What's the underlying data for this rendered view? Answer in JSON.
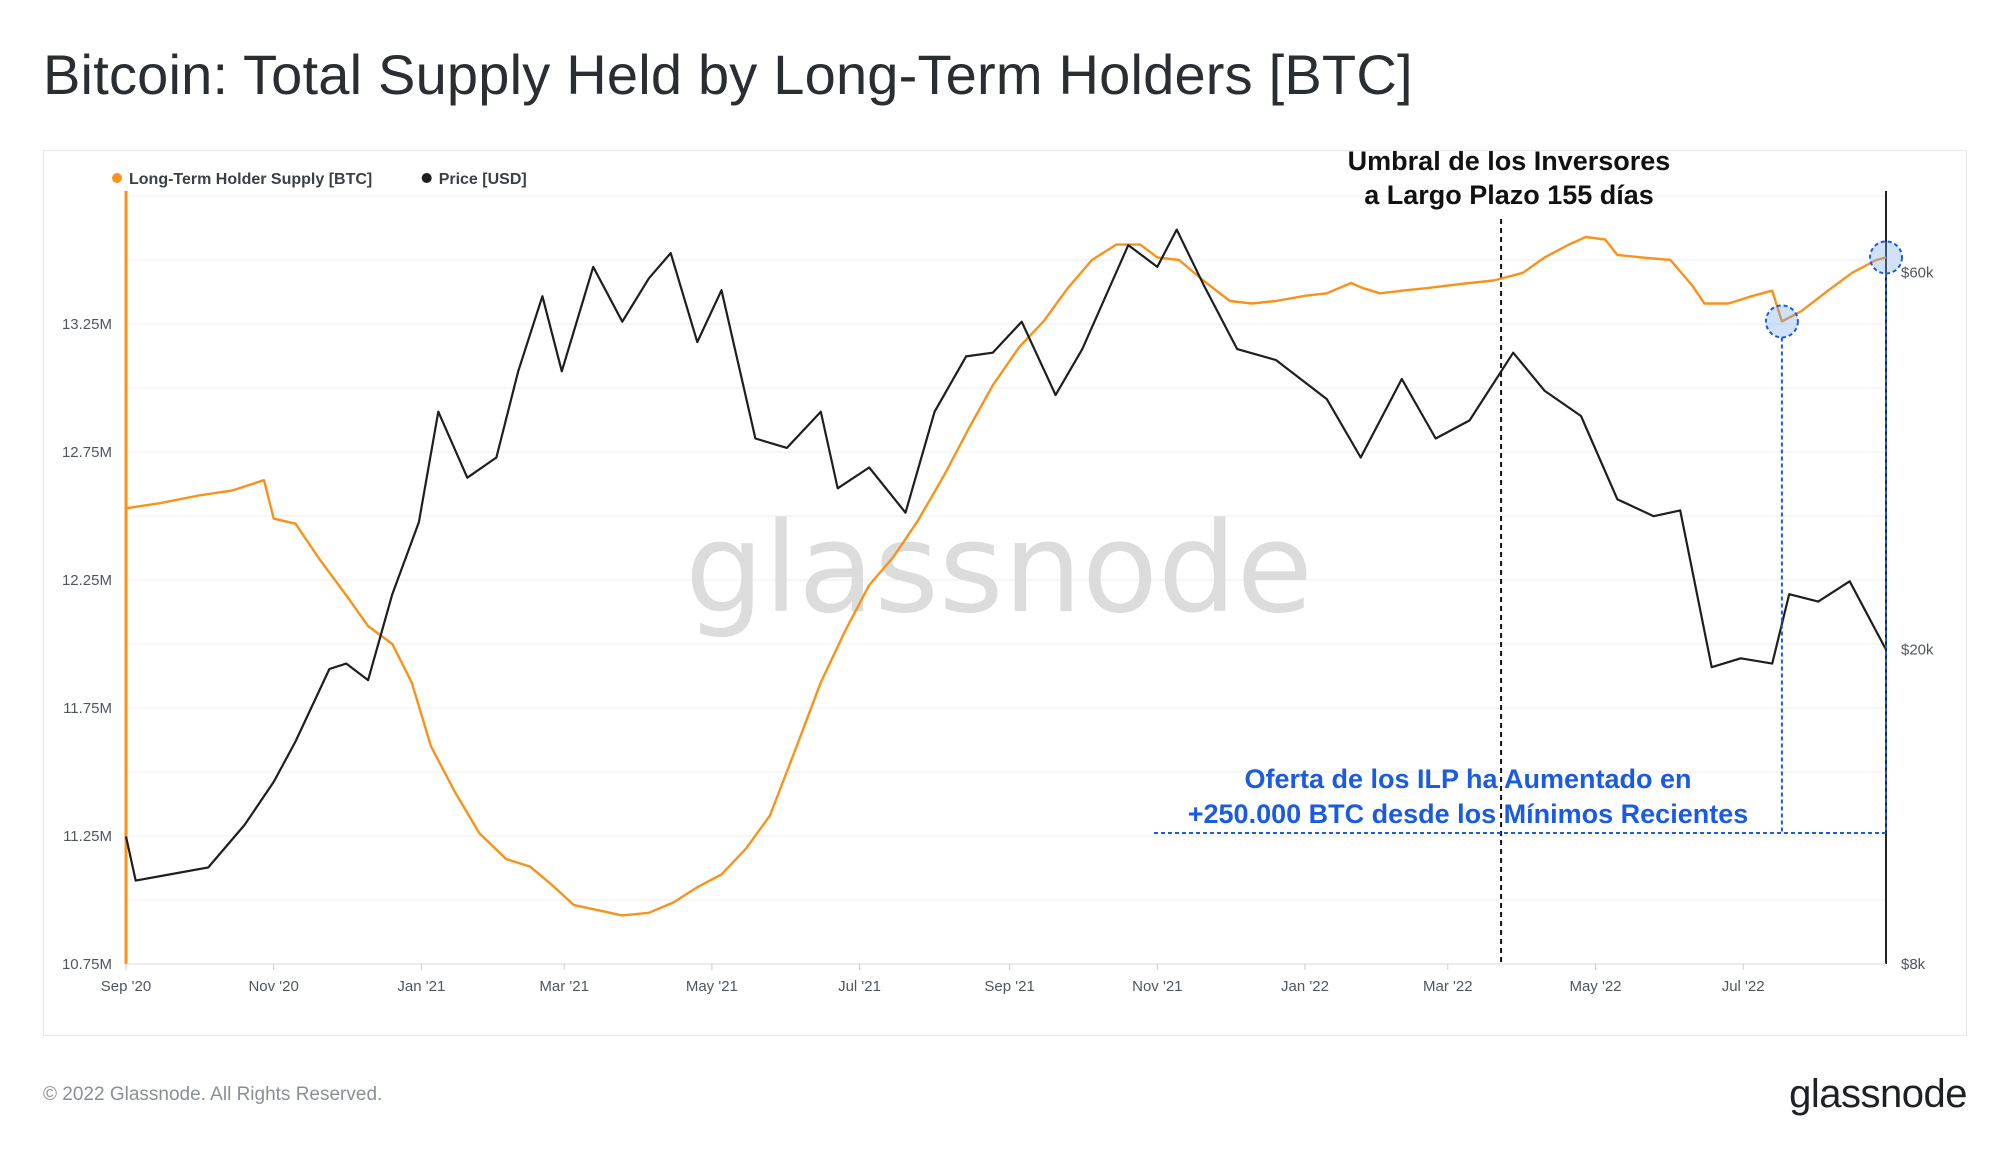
{
  "page": {
    "title": "Bitcoin: Total Supply Held by Long-Term Holders [BTC]",
    "copyright": "© 2022 Glassnode. All Rights Reserved.",
    "brand": "glassnode",
    "watermark": "glassnode"
  },
  "chart_data": {
    "type": "line",
    "title": "Bitcoin: Total Supply Held by Long-Term Holders [BTC]",
    "x_ticks": [
      "Sep '20",
      "Nov '20",
      "Jan '21",
      "Mar '21",
      "May '21",
      "Jul '21",
      "Sep '21",
      "Nov '21",
      "Jan '22",
      "Mar '22",
      "May '22",
      "Jul '22"
    ],
    "x_tick_dates": [
      "2020-09-01",
      "2020-11-01",
      "2021-01-01",
      "2021-03-01",
      "2021-05-01",
      "2021-07-01",
      "2021-09-01",
      "2021-11-01",
      "2022-01-01",
      "2022-03-01",
      "2022-05-01",
      "2022-07-01"
    ],
    "x_range": [
      "2020-09-01",
      "2022-08-29"
    ],
    "left_axis": {
      "ticks": [
        "10.75M",
        "11.25M",
        "11.75M",
        "12.25M",
        "12.75M",
        "13.25M"
      ],
      "tick_values": [
        10750000,
        11250000,
        11750000,
        12250000,
        12750000,
        13250000
      ],
      "range": [
        10750000,
        13750000
      ],
      "color": "#f7931a"
    },
    "right_axis": {
      "scale": "log",
      "ticks": [
        "$8k",
        "$20k",
        "$60k"
      ],
      "tick_values": [
        8000,
        20000,
        60000
      ],
      "range": [
        8000,
        75000
      ],
      "color": "#1e1e1e"
    },
    "legend_position": "top-left",
    "grid": true,
    "series": [
      {
        "name": "Long-Term Holder Supply [BTC]",
        "axis": "left",
        "color": "#f7931a",
        "points": [
          [
            "2020-09-01",
            12530000
          ],
          [
            "2020-09-15",
            12550000
          ],
          [
            "2020-10-01",
            12580000
          ],
          [
            "2020-10-15",
            12600000
          ],
          [
            "2020-10-28",
            12640000
          ],
          [
            "2020-11-01",
            12490000
          ],
          [
            "2020-11-10",
            12470000
          ],
          [
            "2020-11-20",
            12330000
          ],
          [
            "2020-12-01",
            12190000
          ],
          [
            "2020-12-10",
            12070000
          ],
          [
            "2020-12-20",
            12000000
          ],
          [
            "2020-12-28",
            11850000
          ],
          [
            "2021-01-05",
            11600000
          ],
          [
            "2021-01-15",
            11420000
          ],
          [
            "2021-01-25",
            11260000
          ],
          [
            "2021-02-05",
            11160000
          ],
          [
            "2021-02-15",
            11130000
          ],
          [
            "2021-02-25",
            11050000
          ],
          [
            "2021-03-05",
            10980000
          ],
          [
            "2021-03-15",
            10960000
          ],
          [
            "2021-03-25",
            10940000
          ],
          [
            "2021-04-05",
            10950000
          ],
          [
            "2021-04-15",
            10990000
          ],
          [
            "2021-04-25",
            11050000
          ],
          [
            "2021-05-05",
            11100000
          ],
          [
            "2021-05-15",
            11200000
          ],
          [
            "2021-05-25",
            11330000
          ],
          [
            "2021-06-05",
            11600000
          ],
          [
            "2021-06-15",
            11850000
          ],
          [
            "2021-06-25",
            12050000
          ],
          [
            "2021-07-05",
            12230000
          ],
          [
            "2021-07-15",
            12340000
          ],
          [
            "2021-07-25",
            12480000
          ],
          [
            "2021-08-05",
            12660000
          ],
          [
            "2021-08-15",
            12840000
          ],
          [
            "2021-08-25",
            13010000
          ],
          [
            "2021-09-05",
            13160000
          ],
          [
            "2021-09-15",
            13260000
          ],
          [
            "2021-09-25",
            13390000
          ],
          [
            "2021-10-05",
            13500000
          ],
          [
            "2021-10-15",
            13560000
          ],
          [
            "2021-10-25",
            13560000
          ],
          [
            "2021-11-01",
            13510000
          ],
          [
            "2021-11-10",
            13500000
          ],
          [
            "2021-11-20",
            13420000
          ],
          [
            "2021-12-01",
            13340000
          ],
          [
            "2021-12-10",
            13330000
          ],
          [
            "2021-12-20",
            13340000
          ],
          [
            "2022-01-01",
            13360000
          ],
          [
            "2022-01-10",
            13370000
          ],
          [
            "2022-01-20",
            13410000
          ],
          [
            "2022-01-25",
            13390000
          ],
          [
            "2022-02-01",
            13370000
          ],
          [
            "2022-02-10",
            13380000
          ],
          [
            "2022-02-20",
            13390000
          ],
          [
            "2022-03-01",
            13400000
          ],
          [
            "2022-03-10",
            13410000
          ],
          [
            "2022-03-20",
            13420000
          ],
          [
            "2022-04-01",
            13450000
          ],
          [
            "2022-04-10",
            13510000
          ],
          [
            "2022-04-20",
            13560000
          ],
          [
            "2022-04-27",
            13590000
          ],
          [
            "2022-05-05",
            13580000
          ],
          [
            "2022-05-10",
            13520000
          ],
          [
            "2022-05-20",
            13510000
          ],
          [
            "2022-06-01",
            13500000
          ],
          [
            "2022-06-10",
            13400000
          ],
          [
            "2022-06-15",
            13330000
          ],
          [
            "2022-06-25",
            13330000
          ],
          [
            "2022-07-05",
            13360000
          ],
          [
            "2022-07-13",
            13380000
          ],
          [
            "2022-07-17",
            13260000
          ],
          [
            "2022-07-25",
            13300000
          ],
          [
            "2022-08-05",
            13380000
          ],
          [
            "2022-08-15",
            13450000
          ],
          [
            "2022-08-25",
            13500000
          ],
          [
            "2022-08-29",
            13510000
          ]
        ]
      },
      {
        "name": "Price [USD]",
        "axis": "right",
        "color": "#1e1e1e",
        "points": [
          [
            "2020-09-01",
            11600
          ],
          [
            "2020-09-05",
            10200
          ],
          [
            "2020-09-20",
            10400
          ],
          [
            "2020-10-05",
            10600
          ],
          [
            "2020-10-20",
            12000
          ],
          [
            "2020-11-01",
            13600
          ],
          [
            "2020-11-10",
            15300
          ],
          [
            "2020-11-24",
            18900
          ],
          [
            "2020-12-01",
            19200
          ],
          [
            "2020-12-10",
            18300
          ],
          [
            "2020-12-20",
            23500
          ],
          [
            "2020-12-31",
            29000
          ],
          [
            "2021-01-08",
            40000
          ],
          [
            "2021-01-20",
            33000
          ],
          [
            "2021-02-01",
            35000
          ],
          [
            "2021-02-10",
            45000
          ],
          [
            "2021-02-20",
            56000
          ],
          [
            "2021-02-28",
            45000
          ],
          [
            "2021-03-13",
            61000
          ],
          [
            "2021-03-25",
            52000
          ],
          [
            "2021-04-05",
            59000
          ],
          [
            "2021-04-14",
            63500
          ],
          [
            "2021-04-25",
            49000
          ],
          [
            "2021-05-05",
            57000
          ],
          [
            "2021-05-19",
            37000
          ],
          [
            "2021-06-01",
            36000
          ],
          [
            "2021-06-15",
            40000
          ],
          [
            "2021-06-22",
            32000
          ],
          [
            "2021-07-05",
            34000
          ],
          [
            "2021-07-20",
            29800
          ],
          [
            "2021-08-01",
            40000
          ],
          [
            "2021-08-14",
            47000
          ],
          [
            "2021-08-25",
            47500
          ],
          [
            "2021-09-06",
            52000
          ],
          [
            "2021-09-20",
            42000
          ],
          [
            "2021-10-01",
            48000
          ],
          [
            "2021-10-20",
            65000
          ],
          [
            "2021-11-01",
            61000
          ],
          [
            "2021-11-09",
            68000
          ],
          [
            "2021-11-20",
            58000
          ],
          [
            "2021-12-04",
            48000
          ],
          [
            "2021-12-20",
            46500
          ],
          [
            "2022-01-10",
            41500
          ],
          [
            "2022-01-24",
            35000
          ],
          [
            "2022-02-10",
            44000
          ],
          [
            "2022-02-24",
            37000
          ],
          [
            "2022-03-10",
            39000
          ],
          [
            "2022-03-28",
            47500
          ],
          [
            "2022-04-10",
            42500
          ],
          [
            "2022-04-25",
            39500
          ],
          [
            "2022-05-10",
            31000
          ],
          [
            "2022-05-25",
            29500
          ],
          [
            "2022-06-05",
            30000
          ],
          [
            "2022-06-18",
            19000
          ],
          [
            "2022-06-30",
            19500
          ],
          [
            "2022-07-13",
            19200
          ],
          [
            "2022-07-20",
            23500
          ],
          [
            "2022-08-01",
            23000
          ],
          [
            "2022-08-14",
            24400
          ],
          [
            "2022-08-29",
            20000
          ]
        ]
      }
    ],
    "annotations": {
      "threshold_line": {
        "date": "2022-03-23",
        "text_lines": [
          "Umbral de los Inversores",
          "a Largo Plazo 155 días"
        ]
      },
      "lth_low": {
        "date": "2022-07-17",
        "value": 13260000
      },
      "lth_recent": {
        "date": "2022-08-29",
        "value": 13510000
      },
      "callout_lines": [
        "Oferta de los ILP ha Aumentado en",
        "+250.000 BTC desde los Mínimos Recientes"
      ]
    }
  }
}
